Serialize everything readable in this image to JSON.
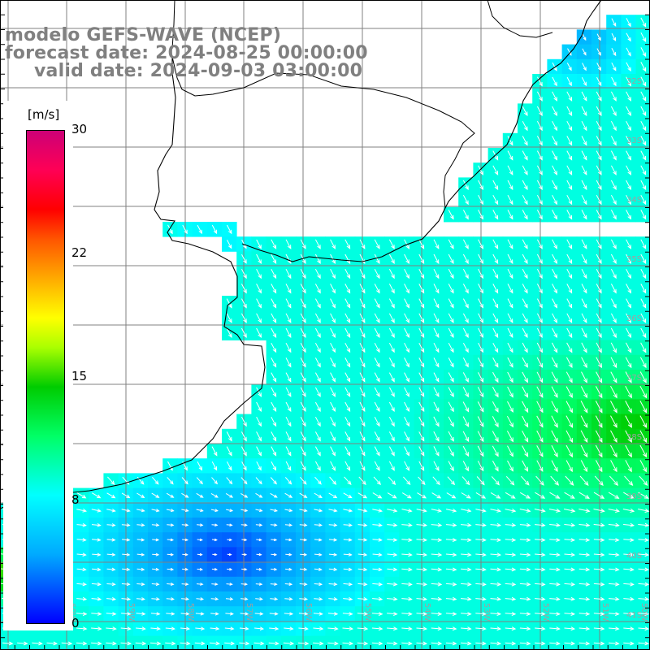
{
  "title": {
    "line1": "modelo GEFS-WAVE (NCEP)",
    "line2": "forecast date: 2024-08-25 00:00:00",
    "line3": "valid date: 2024-09-03 03:00:00"
  },
  "colorbar": {
    "unit": "[m/s]",
    "ticks": [
      "30",
      "22",
      "15",
      "8",
      "0"
    ],
    "min": 0,
    "max": 30,
    "colors": [
      "#0000ff",
      "#00aaff",
      "#00ffff",
      "#00ff66",
      "#00cc00",
      "#aaff00",
      "#ffff00",
      "#ffaa00",
      "#ff5500",
      "#ff0000",
      "#ff0055",
      "#cc0077"
    ]
  },
  "map": {
    "lat_labels": [
      "32S",
      "33S",
      "34S",
      "35S",
      "36S",
      "37S",
      "38S",
      "39S",
      "40S",
      "41S"
    ],
    "lon_labels": [
      "61W",
      "60W",
      "59W",
      "58W",
      "57W",
      "56W",
      "55W",
      "54W",
      "53W",
      "52W",
      "51W",
      "50W"
    ],
    "land_color": "#ffffff",
    "grid_color": "#808080",
    "coast_color": "#000000",
    "arrow_color": "#ffffff"
  }
}
